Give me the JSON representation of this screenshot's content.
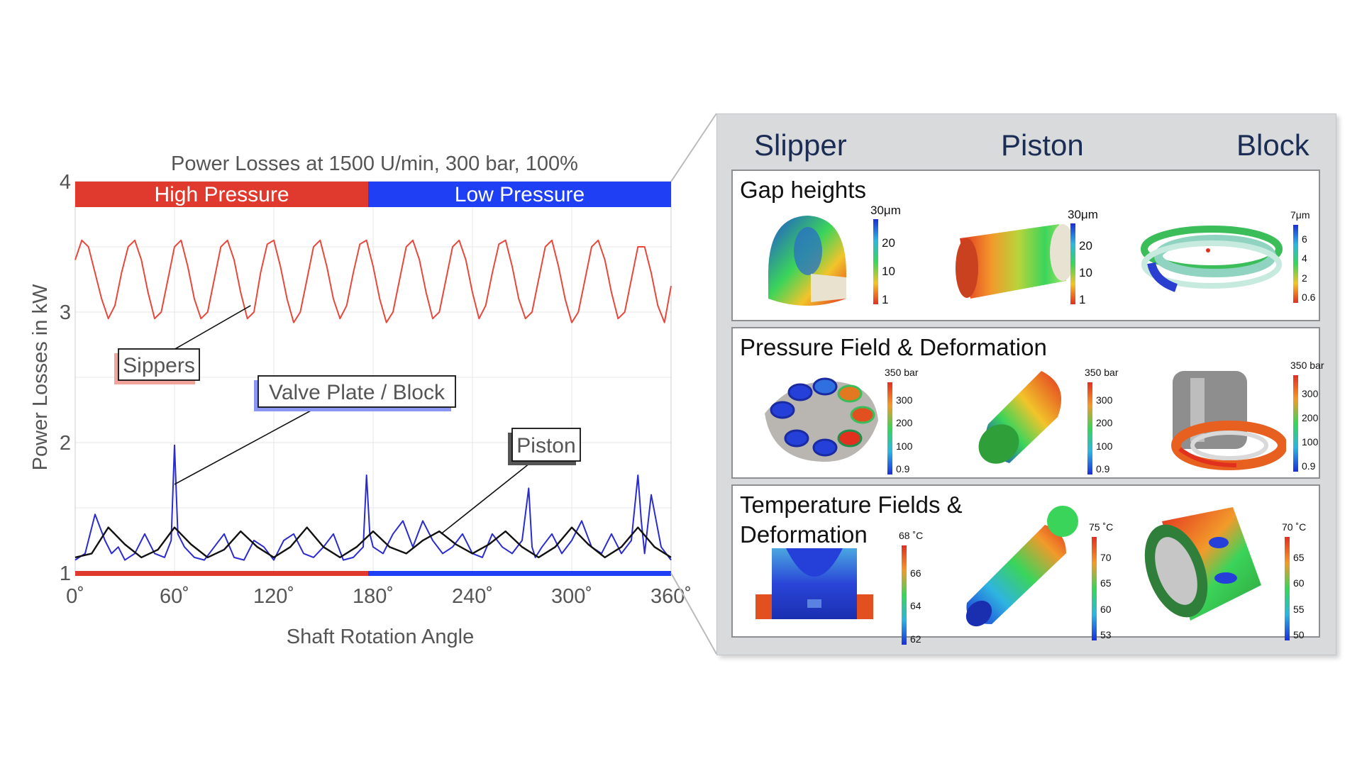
{
  "chart_data": {
    "type": "line",
    "title": "Power Losses at 1500 U/min, 300 bar, 100%",
    "xlabel": "Shaft Rotation Angle",
    "ylabel": "Power Losses in kW",
    "xlim": [
      0,
      360
    ],
    "ylim": [
      1,
      4
    ],
    "xticks": [
      "0˚",
      "60˚",
      "120˚",
      "180˚",
      "240˚",
      "300˚",
      "360˚"
    ],
    "yticks": [
      "1",
      "2",
      "3",
      "4"
    ],
    "grid": true,
    "phase_bars": [
      {
        "label": "High Pressure",
        "from": 0,
        "to": 177,
        "color": "#e03a2f"
      },
      {
        "label": "Low Pressure",
        "from": 177,
        "to": 360,
        "color": "#1f3ff5"
      }
    ],
    "series": [
      {
        "name": "Sippers",
        "color": "#e8473b",
        "x": [
          0,
          4,
          8,
          12,
          16,
          20,
          24,
          28,
          32,
          36,
          40,
          44,
          48,
          52,
          56,
          60,
          64,
          68,
          72,
          76,
          80,
          84,
          88,
          92,
          96,
          100,
          104,
          108,
          112,
          116,
          120,
          124,
          128,
          132,
          136,
          140,
          144,
          148,
          152,
          156,
          160,
          164,
          168,
          172,
          176,
          180,
          184,
          188,
          192,
          196,
          200,
          204,
          208,
          212,
          216,
          220,
          224,
          228,
          232,
          236,
          240,
          244,
          248,
          252,
          256,
          260,
          264,
          268,
          272,
          276,
          280,
          284,
          288,
          292,
          296,
          300,
          304,
          308,
          312,
          316,
          320,
          324,
          328,
          332,
          336,
          340,
          344,
          348,
          352,
          356,
          360
        ],
        "values": [
          3.4,
          3.55,
          3.5,
          3.3,
          3.1,
          2.95,
          3.05,
          3.3,
          3.5,
          3.55,
          3.4,
          3.15,
          2.95,
          3.0,
          3.25,
          3.5,
          3.55,
          3.35,
          3.1,
          2.95,
          3.0,
          3.25,
          3.5,
          3.55,
          3.4,
          3.15,
          2.95,
          3.0,
          3.3,
          3.52,
          3.55,
          3.35,
          3.1,
          2.92,
          3.0,
          3.25,
          3.5,
          3.55,
          3.35,
          3.1,
          2.95,
          3.05,
          3.3,
          3.52,
          3.55,
          3.35,
          3.1,
          2.92,
          3.0,
          3.25,
          3.5,
          3.55,
          3.4,
          3.15,
          2.95,
          3.0,
          3.25,
          3.5,
          3.55,
          3.4,
          3.15,
          2.95,
          3.05,
          3.3,
          3.52,
          3.55,
          3.35,
          3.1,
          2.95,
          3.0,
          3.25,
          3.5,
          3.55,
          3.35,
          3.1,
          2.92,
          3.0,
          3.25,
          3.5,
          3.55,
          3.4,
          3.15,
          2.95,
          3.0,
          3.25,
          3.5,
          3.5,
          3.3,
          3.05,
          2.92,
          3.2
        ]
      },
      {
        "name": "Valve Plate / Block",
        "color": "#2a2bd0",
        "x": [
          0,
          6,
          12,
          18,
          22,
          26,
          30,
          36,
          42,
          48,
          54,
          58,
          60,
          62,
          66,
          72,
          78,
          84,
          90,
          96,
          102,
          108,
          114,
          120,
          126,
          132,
          138,
          144,
          150,
          156,
          162,
          168,
          174,
          176,
          178,
          180,
          186,
          192,
          198,
          204,
          210,
          216,
          222,
          228,
          234,
          240,
          246,
          252,
          258,
          264,
          270,
          274,
          276,
          278,
          282,
          288,
          294,
          300,
          306,
          312,
          318,
          324,
          330,
          336,
          340,
          342,
          344,
          348,
          354,
          360
        ],
        "values": [
          1.1,
          1.15,
          1.45,
          1.25,
          1.15,
          1.2,
          1.1,
          1.15,
          1.3,
          1.15,
          1.12,
          1.25,
          1.98,
          1.3,
          1.2,
          1.12,
          1.1,
          1.2,
          1.3,
          1.12,
          1.1,
          1.25,
          1.2,
          1.1,
          1.25,
          1.3,
          1.15,
          1.12,
          1.2,
          1.3,
          1.1,
          1.12,
          1.2,
          1.75,
          1.3,
          1.2,
          1.15,
          1.3,
          1.4,
          1.2,
          1.4,
          1.25,
          1.15,
          1.2,
          1.3,
          1.15,
          1.12,
          1.3,
          1.2,
          1.15,
          1.25,
          1.65,
          1.2,
          1.12,
          1.2,
          1.3,
          1.15,
          1.25,
          1.4,
          1.2,
          1.15,
          1.3,
          1.15,
          1.25,
          1.75,
          1.4,
          1.15,
          1.6,
          1.2,
          1.1
        ]
      },
      {
        "name": "Piston",
        "color": "#111111",
        "x": [
          0,
          10,
          20,
          30,
          40,
          50,
          60,
          70,
          80,
          90,
          100,
          110,
          120,
          130,
          140,
          150,
          160,
          170,
          180,
          190,
          200,
          210,
          220,
          230,
          240,
          250,
          260,
          270,
          280,
          290,
          300,
          310,
          320,
          330,
          340,
          350,
          360
        ],
        "values": [
          1.12,
          1.15,
          1.35,
          1.22,
          1.12,
          1.18,
          1.35,
          1.22,
          1.12,
          1.18,
          1.32,
          1.2,
          1.12,
          1.2,
          1.35,
          1.2,
          1.12,
          1.2,
          1.32,
          1.2,
          1.15,
          1.25,
          1.32,
          1.22,
          1.15,
          1.22,
          1.32,
          1.2,
          1.12,
          1.2,
          1.35,
          1.22,
          1.12,
          1.2,
          1.35,
          1.2,
          1.12
        ]
      }
    ],
    "annotations": [
      {
        "label": "Sippers",
        "target": [
          106,
          3.05
        ]
      },
      {
        "label": "Valve Plate / Block",
        "target": [
          60,
          1.68
        ]
      },
      {
        "label": "Piston",
        "target": [
          221,
          1.3
        ]
      }
    ]
  },
  "panel": {
    "columns": [
      "Slipper",
      "Piston",
      "Block"
    ],
    "rows": [
      {
        "title": "Gap heights",
        "scales": [
          {
            "labels": [
              "30μm",
              "20",
              "10",
              "1"
            ]
          },
          {
            "labels": [
              "30μm",
              "20",
              "10",
              "1"
            ]
          },
          {
            "labels": [
              "7μm",
              "6",
              "4",
              "2",
              "0.6"
            ]
          }
        ]
      },
      {
        "title": "Pressure Field & Deformation",
        "scales": [
          {
            "labels": [
              "350 bar",
              "300",
              "200",
              "100",
              "0.9"
            ]
          },
          {
            "labels": [
              "350 bar",
              "300",
              "200",
              "100",
              "0.9"
            ]
          },
          {
            "labels": [
              "350 bar",
              "300",
              "200",
              "100",
              "0.9"
            ]
          }
        ]
      },
      {
        "title": "Temperature Fields &\nDeformation",
        "scales": [
          {
            "labels": [
              "68 ˚C",
              "66",
              "64",
              "62"
            ]
          },
          {
            "labels": [
              "75 ˚C",
              "70",
              "65",
              "60",
              "53"
            ]
          },
          {
            "labels": [
              "70 ˚C",
              "65",
              "60",
              "55",
              "50"
            ]
          }
        ]
      }
    ]
  }
}
